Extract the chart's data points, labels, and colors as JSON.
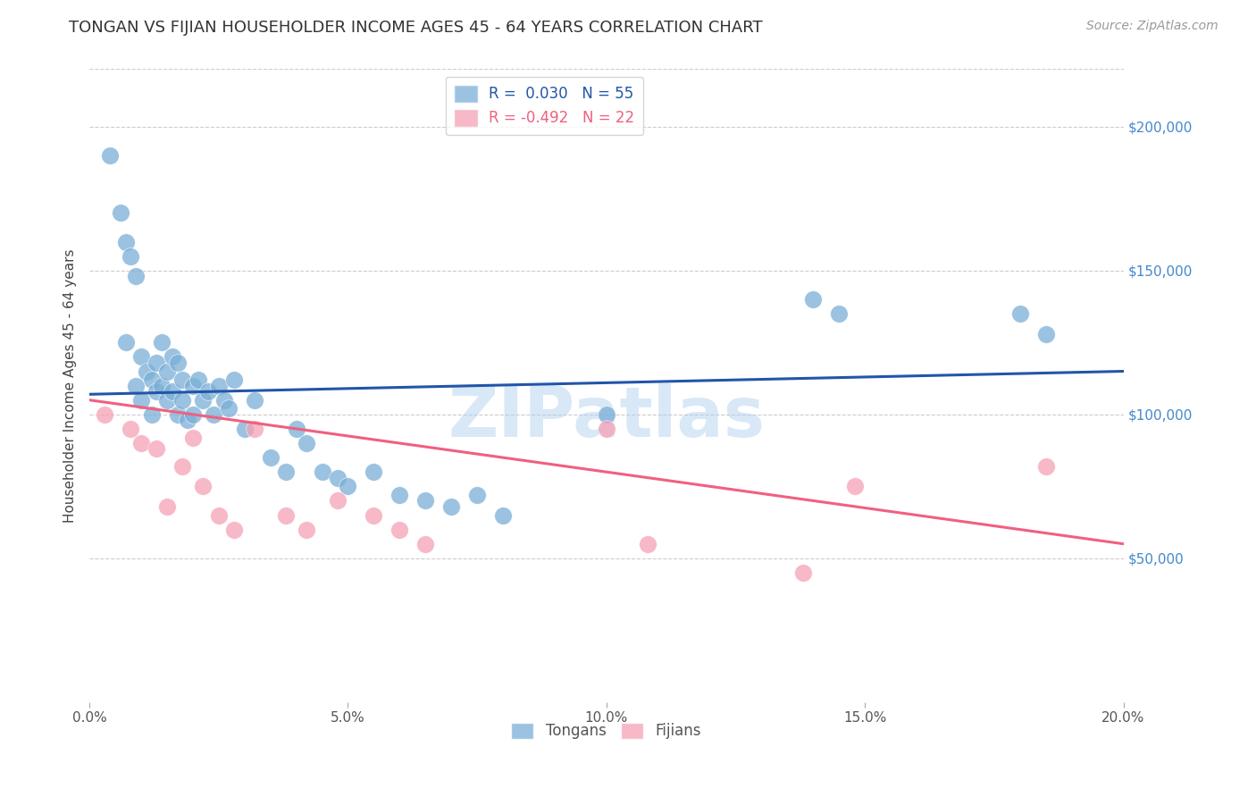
{
  "title": "TONGAN VS FIJIAN HOUSEHOLDER INCOME AGES 45 - 64 YEARS CORRELATION CHART",
  "source": "Source: ZipAtlas.com",
  "ylabel": "Householder Income Ages 45 - 64 years",
  "xlim": [
    0.0,
    0.2
  ],
  "ylim": [
    0,
    220000
  ],
  "xtick_labels": [
    "0.0%",
    "5.0%",
    "10.0%",
    "15.0%",
    "20.0%"
  ],
  "xtick_vals": [
    0.0,
    0.05,
    0.1,
    0.15,
    0.2
  ],
  "ytick_labels": [
    "$50,000",
    "$100,000",
    "$150,000",
    "$200,000"
  ],
  "ytick_vals": [
    50000,
    100000,
    150000,
    200000
  ],
  "background_color": "#ffffff",
  "grid_color": "#cccccc",
  "tongan_color": "#7aaed6",
  "fijian_color": "#f5a0b5",
  "tongan_line_color": "#2255aa",
  "fijian_line_color": "#f06080",
  "tongan_R": 0.03,
  "tongan_N": 55,
  "fijian_R": -0.492,
  "fijian_N": 22,
  "watermark": "ZIPatlas",
  "watermark_color": "#aaccee",
  "tongan_x": [
    0.004,
    0.006,
    0.007,
    0.007,
    0.008,
    0.009,
    0.009,
    0.01,
    0.01,
    0.011,
    0.012,
    0.012,
    0.013,
    0.013,
    0.014,
    0.014,
    0.015,
    0.015,
    0.016,
    0.016,
    0.017,
    0.017,
    0.018,
    0.018,
    0.019,
    0.02,
    0.02,
    0.021,
    0.022,
    0.023,
    0.024,
    0.025,
    0.026,
    0.027,
    0.028,
    0.03,
    0.032,
    0.035,
    0.038,
    0.04,
    0.042,
    0.045,
    0.048,
    0.05,
    0.055,
    0.06,
    0.065,
    0.07,
    0.075,
    0.08,
    0.1,
    0.14,
    0.145,
    0.18,
    0.185
  ],
  "tongan_y": [
    190000,
    170000,
    160000,
    125000,
    155000,
    148000,
    110000,
    120000,
    105000,
    115000,
    112000,
    100000,
    118000,
    108000,
    125000,
    110000,
    115000,
    105000,
    120000,
    108000,
    118000,
    100000,
    112000,
    105000,
    98000,
    110000,
    100000,
    112000,
    105000,
    108000,
    100000,
    110000,
    105000,
    102000,
    112000,
    95000,
    105000,
    85000,
    80000,
    95000,
    90000,
    80000,
    78000,
    75000,
    80000,
    72000,
    70000,
    68000,
    72000,
    65000,
    100000,
    140000,
    135000,
    135000,
    128000
  ],
  "fijian_x": [
    0.003,
    0.008,
    0.01,
    0.013,
    0.015,
    0.018,
    0.02,
    0.022,
    0.025,
    0.028,
    0.032,
    0.038,
    0.042,
    0.048,
    0.055,
    0.06,
    0.065,
    0.1,
    0.108,
    0.138,
    0.148,
    0.185
  ],
  "fijian_y": [
    100000,
    95000,
    90000,
    88000,
    68000,
    82000,
    92000,
    75000,
    65000,
    60000,
    95000,
    65000,
    60000,
    70000,
    65000,
    60000,
    55000,
    95000,
    55000,
    45000,
    75000,
    82000
  ]
}
